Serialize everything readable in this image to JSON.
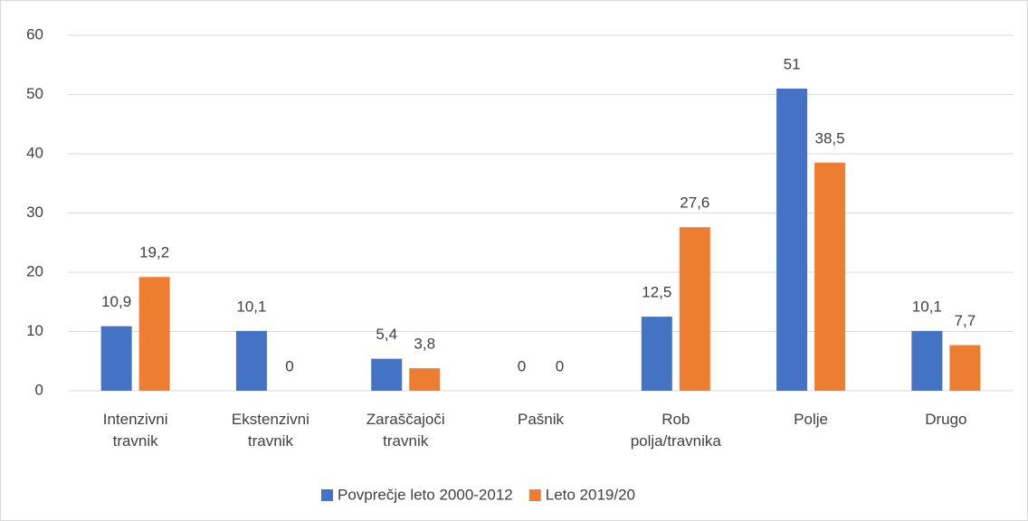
{
  "chart_data": {
    "type": "bar",
    "categories": [
      "Intenzivni travnik",
      "Ekstenzivni travnik",
      "Zaraščajoči travnik",
      "Pašnik",
      "Rob polja/travnika",
      "Polje",
      "Drugo"
    ],
    "series": [
      {
        "name": "Povprečje leto 2000-2012",
        "color": "#4472c4",
        "values": [
          10.9,
          10.1,
          5.4,
          0,
          12.5,
          51,
          10.1
        ],
        "value_labels": [
          "10,9",
          "10,1",
          "5,4",
          "0",
          "12,5",
          "51",
          "10,1"
        ]
      },
      {
        "name": "Leto 2019/20",
        "color": "#ed7d31",
        "values": [
          19.2,
          0,
          3.8,
          0,
          27.6,
          38.5,
          7.7
        ],
        "value_labels": [
          "19,2",
          "0",
          "3,8",
          "0",
          "27,6",
          "38,5",
          "7,7"
        ]
      }
    ],
    "ylim": [
      0,
      60
    ],
    "yticks": [
      0,
      10,
      20,
      30,
      40,
      50,
      60
    ],
    "grid": true,
    "legend": "bottom"
  }
}
